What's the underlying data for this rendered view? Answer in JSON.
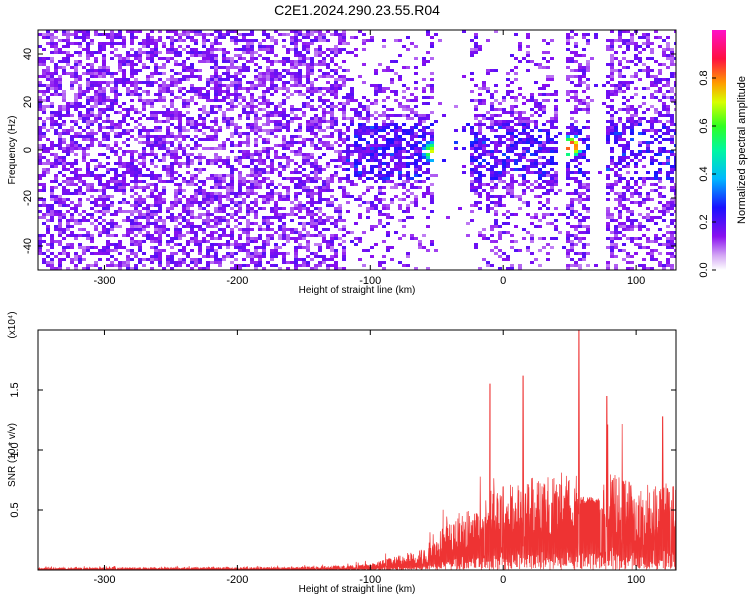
{
  "colors": {
    "snr_line": "#ee3333",
    "spectrogram_base": "#7a1ae8",
    "colorbar_stops": [
      "#ffffff",
      "#c070f0",
      "#7a00f0",
      "#0010ff",
      "#00c8ff",
      "#00ff60",
      "#c0ff00",
      "#ff9000",
      "#ff0060",
      "#ff20c0"
    ]
  },
  "chart_data": [
    {
      "type": "heatmap",
      "title": "C2E1.2024.290.23.55.R04",
      "xlabel": "Height of straight line (km)",
      "ylabel": "Frequency (Hz)",
      "xlim": [
        -350,
        130
      ],
      "ylim": [
        -50,
        50
      ],
      "xticks": [
        "-300",
        "-200",
        "-100",
        "0",
        "100"
      ],
      "yticks": [
        "-40",
        "-20",
        "0",
        "20",
        "40"
      ],
      "colorbar": {
        "label": "Normalized spectral amplitude",
        "range": [
          0.0,
          1.0
        ],
        "ticks": [
          "0.0",
          "0.2",
          "0.4",
          "0.6",
          "0.8"
        ]
      },
      "features": [
        {
          "x": -55,
          "y": 0,
          "amplitude": 0.7
        },
        {
          "x": 50,
          "y": 2,
          "amplitude": 0.95
        }
      ],
      "sparse_regions_x": [
        [
          -55,
          -25
        ],
        [
          40,
          45
        ],
        [
          65,
          75
        ]
      ]
    },
    {
      "type": "line",
      "xlabel": "Height of straight line (km)",
      "ylabel": "SNR (10 * v/v)",
      "multiplier": "(x10⁴)",
      "xlim": [
        -350,
        130
      ],
      "ylim": [
        0,
        2.0
      ],
      "xticks": [
        "-300",
        "-200",
        "-100",
        "0",
        "100"
      ],
      "yticks": [
        "0.5",
        "1.0",
        "1.5"
      ],
      "envelope": {
        "x": [
          -350,
          -150,
          -100,
          -80,
          -60,
          -40,
          -20,
          0,
          20,
          40,
          55,
          58,
          70,
          80,
          100,
          130
        ],
        "y": [
          0.02,
          0.025,
          0.05,
          0.12,
          0.18,
          0.45,
          0.55,
          0.7,
          0.78,
          0.8,
          0.85,
          0.58,
          0.55,
          0.85,
          0.7,
          0.75
        ]
      },
      "peaks": [
        {
          "x": -10,
          "y": 1.55
        },
        {
          "x": 15,
          "y": 1.62
        },
        {
          "x": 57,
          "y": 2.0
        },
        {
          "x": 78,
          "y": 1.45
        },
        {
          "x": 120,
          "y": 1.28
        }
      ],
      "plateau": {
        "x": [
          58,
          72
        ],
        "y": 0.58
      }
    }
  ]
}
